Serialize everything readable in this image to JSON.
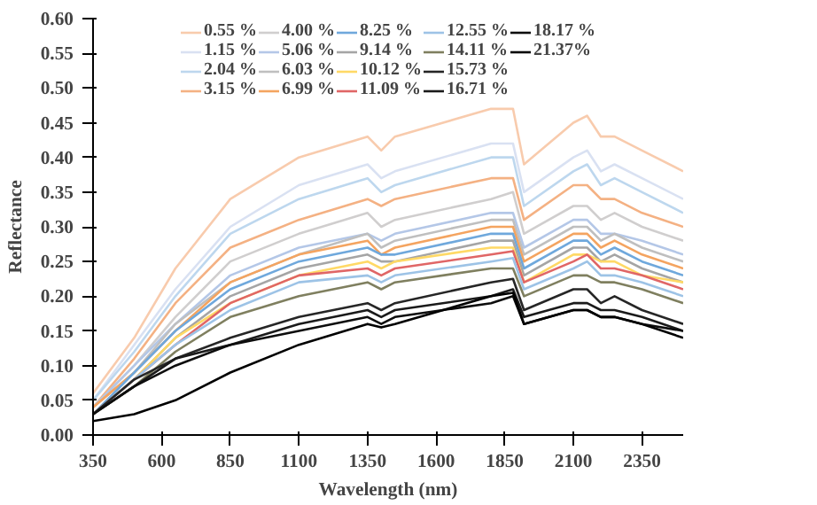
{
  "chart_data": {
    "type": "line",
    "xlabel": "Wavelength (nm)",
    "ylabel": "Reflectance",
    "x": [
      350,
      500,
      650,
      850,
      1100,
      1350,
      1400,
      1450,
      1800,
      1880,
      1920,
      2100,
      2150,
      2200,
      2250,
      2350,
      2500
    ],
    "xlim": [
      350,
      2500
    ],
    "xticks": [
      350,
      600,
      850,
      1100,
      1350,
      1600,
      1850,
      2100,
      2350
    ],
    "ylim": [
      0,
      0.6
    ],
    "yticks": [
      {
        "value": 0,
        "label": "0.00"
      },
      {
        "value": 0.05,
        "label": "0.05"
      },
      {
        "value": 0.1,
        "label": "0.10"
      },
      {
        "value": 0.15,
        "label": "0.15"
      },
      {
        "value": 0.2,
        "label": "0.20"
      },
      {
        "value": 0.25,
        "label": "0.25"
      },
      {
        "value": 0.3,
        "label": "0.30"
      },
      {
        "value": 0.35,
        "label": "0.35"
      },
      {
        "value": 0.4,
        "label": "0.40"
      },
      {
        "value": 0.45,
        "label": "0.45"
      },
      {
        "value": 0.5,
        "label": "0.50"
      },
      {
        "value": 0.55,
        "label": "0.55"
      },
      {
        "value": 0.6,
        "label": "0.60"
      }
    ],
    "grid": false,
    "legend": "top",
    "marker": "none",
    "line_style": "solid",
    "series": [
      {
        "name": "0.55 %",
        "color": "#f8cbad",
        "values": [
          0.06,
          0.14,
          0.24,
          0.34,
          0.4,
          0.43,
          0.41,
          0.43,
          0.47,
          0.47,
          0.39,
          0.45,
          0.46,
          0.43,
          0.43,
          0.41,
          0.38
        ]
      },
      {
        "name": "1.15 %",
        "color": "#d9e1f2",
        "values": [
          0.05,
          0.13,
          0.21,
          0.3,
          0.36,
          0.39,
          0.37,
          0.38,
          0.42,
          0.42,
          0.35,
          0.4,
          0.41,
          0.38,
          0.39,
          0.37,
          0.34
        ]
      },
      {
        "name": "2.04 %",
        "color": "#bdd7ee",
        "values": [
          0.05,
          0.12,
          0.2,
          0.29,
          0.34,
          0.37,
          0.35,
          0.36,
          0.4,
          0.4,
          0.33,
          0.38,
          0.39,
          0.36,
          0.37,
          0.35,
          0.32
        ]
      },
      {
        "name": "3.15 %",
        "color": "#f4b183",
        "values": [
          0.04,
          0.11,
          0.19,
          0.27,
          0.31,
          0.34,
          0.33,
          0.34,
          0.37,
          0.37,
          0.31,
          0.36,
          0.36,
          0.34,
          0.34,
          0.32,
          0.3
        ]
      },
      {
        "name": "4.00 %",
        "color": "#d0cece",
        "values": [
          0.04,
          0.1,
          0.17,
          0.25,
          0.29,
          0.32,
          0.3,
          0.31,
          0.34,
          0.35,
          0.29,
          0.33,
          0.33,
          0.31,
          0.32,
          0.3,
          0.28
        ]
      },
      {
        "name": "5.06 %",
        "color": "#b4c7e7",
        "values": [
          0.04,
          0.1,
          0.16,
          0.23,
          0.27,
          0.29,
          0.28,
          0.29,
          0.32,
          0.32,
          0.27,
          0.31,
          0.31,
          0.29,
          0.29,
          0.28,
          0.26
        ]
      },
      {
        "name": "6.03 %",
        "color": "#bfbfbf",
        "values": [
          0.04,
          0.09,
          0.16,
          0.22,
          0.26,
          0.29,
          0.27,
          0.28,
          0.31,
          0.31,
          0.26,
          0.3,
          0.3,
          0.28,
          0.29,
          0.27,
          0.25
        ]
      },
      {
        "name": "6.99 %",
        "color": "#f4a460",
        "values": [
          0.04,
          0.09,
          0.15,
          0.22,
          0.26,
          0.28,
          0.26,
          0.27,
          0.3,
          0.3,
          0.25,
          0.29,
          0.29,
          0.27,
          0.28,
          0.26,
          0.24
        ]
      },
      {
        "name": "8.25 %",
        "color": "#6fa8dc",
        "values": [
          0.03,
          0.09,
          0.15,
          0.21,
          0.25,
          0.27,
          0.26,
          0.26,
          0.29,
          0.29,
          0.24,
          0.28,
          0.28,
          0.26,
          0.27,
          0.25,
          0.23
        ]
      },
      {
        "name": "9.14 %",
        "color": "#a5a5a5",
        "values": [
          0.03,
          0.08,
          0.14,
          0.2,
          0.24,
          0.26,
          0.25,
          0.25,
          0.28,
          0.28,
          0.23,
          0.27,
          0.27,
          0.25,
          0.26,
          0.24,
          0.22
        ]
      },
      {
        "name": "10.12 %",
        "color": "#ffd966",
        "values": [
          0.03,
          0.08,
          0.14,
          0.19,
          0.23,
          0.25,
          0.24,
          0.25,
          0.27,
          0.27,
          0.22,
          0.26,
          0.26,
          0.25,
          0.25,
          0.23,
          0.22
        ]
      },
      {
        "name": "11.09 %",
        "color": "#e06666",
        "values": [
          0.03,
          0.08,
          0.13,
          0.19,
          0.23,
          0.24,
          0.23,
          0.24,
          0.26,
          0.265,
          0.22,
          0.25,
          0.26,
          0.24,
          0.24,
          0.23,
          0.21
        ]
      },
      {
        "name": "12.55 %",
        "color": "#9dc3e6",
        "values": [
          0.03,
          0.08,
          0.13,
          0.18,
          0.22,
          0.23,
          0.22,
          0.23,
          0.25,
          0.255,
          0.21,
          0.24,
          0.25,
          0.23,
          0.23,
          0.22,
          0.2
        ]
      },
      {
        "name": "14.11 %",
        "color": "#7f7f5f",
        "values": [
          0.03,
          0.07,
          0.12,
          0.17,
          0.2,
          0.22,
          0.21,
          0.22,
          0.24,
          0.24,
          0.2,
          0.23,
          0.23,
          0.22,
          0.22,
          0.21,
          0.19
        ]
      },
      {
        "name": "15.73 %",
        "color": "#262626",
        "values": [
          0.03,
          0.08,
          0.11,
          0.14,
          0.17,
          0.19,
          0.18,
          0.19,
          0.22,
          0.225,
          0.18,
          0.21,
          0.21,
          0.19,
          0.2,
          0.18,
          0.16
        ]
      },
      {
        "name": "16.71 %",
        "color": "#1a1a1a",
        "values": [
          0.03,
          0.07,
          0.11,
          0.13,
          0.16,
          0.18,
          0.17,
          0.18,
          0.2,
          0.21,
          0.17,
          0.19,
          0.19,
          0.18,
          0.18,
          0.17,
          0.15
        ]
      },
      {
        "name": "18.17 %",
        "color": "#0d0d0d",
        "values": [
          0.03,
          0.07,
          0.1,
          0.13,
          0.15,
          0.17,
          0.16,
          0.17,
          0.19,
          0.2,
          0.16,
          0.18,
          0.18,
          0.17,
          0.17,
          0.16,
          0.15
        ]
      },
      {
        "name": "21.37%",
        "color": "#000000",
        "values": [
          0.02,
          0.03,
          0.05,
          0.09,
          0.13,
          0.16,
          0.155,
          0.16,
          0.2,
          0.205,
          0.16,
          0.18,
          0.18,
          0.17,
          0.17,
          0.16,
          0.14
        ]
      }
    ]
  }
}
